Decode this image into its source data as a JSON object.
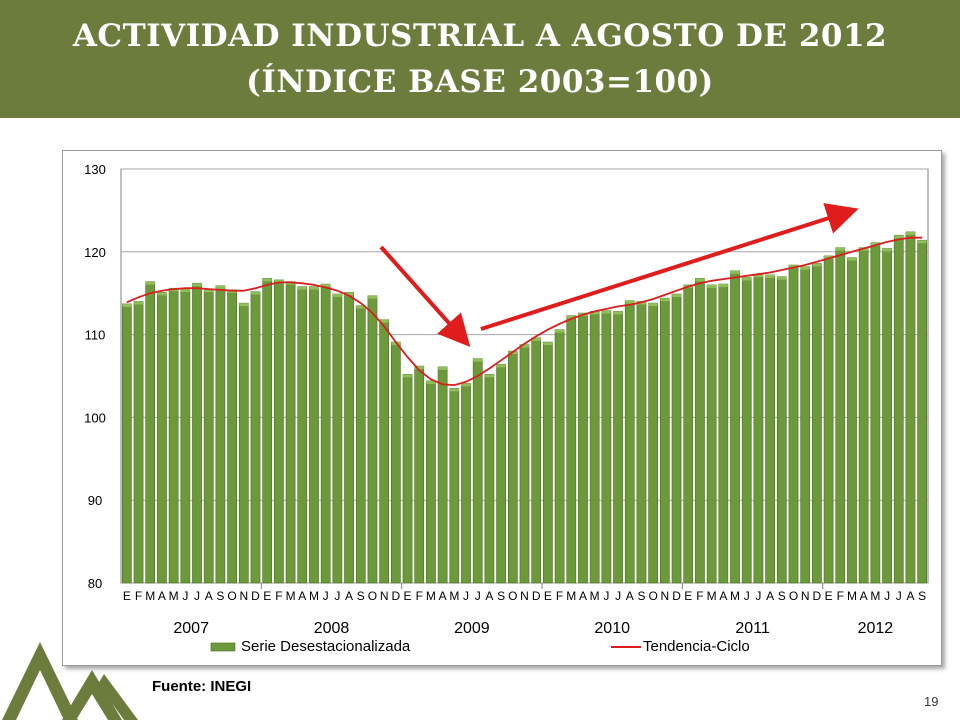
{
  "slide": {
    "title_line1": "ACTIVIDAD  INDUSTRIAL  A AGOSTO DE 2012",
    "title_line2": "(ÍNDICE BASE 2003=100)",
    "source": "Fuente: INEGI",
    "page_number": "19",
    "header_color": "#6b7c3c"
  },
  "chart_data": {
    "type": "bar",
    "y_ticks": [
      "130",
      "120",
      "110",
      "100",
      "90",
      "80"
    ],
    "ylim": [
      80,
      130
    ],
    "grid": true,
    "month_letters": [
      "E",
      "F",
      "M",
      "A",
      "M",
      "J",
      "J",
      "A",
      "S",
      "O",
      "N",
      "D"
    ],
    "years": [
      "2007",
      "2008",
      "2009",
      "2010",
      "2011",
      "2012"
    ],
    "legend_position": "bottom",
    "series": [
      {
        "name": "Serie Desestacionalizada",
        "type": "bar",
        "color": "#6c9a3a",
        "values": [
          113.7,
          114.0,
          116.4,
          115.1,
          115.6,
          115.5,
          116.2,
          115.5,
          115.9,
          115.4,
          113.8,
          115.2,
          116.8,
          116.6,
          116.4,
          115.8,
          115.8,
          116.1,
          114.9,
          115.1,
          113.5,
          114.7,
          111.8,
          109.1,
          105.2,
          106.2,
          104.4,
          106.1,
          103.5,
          104.1,
          107.1,
          105.2,
          106.4,
          108.0,
          108.8,
          109.6,
          109.1,
          110.6,
          112.3,
          112.6,
          112.8,
          112.9,
          112.8,
          114.1,
          114.0,
          113.8,
          114.4,
          114.9,
          116.0,
          116.8,
          116.0,
          116.1,
          117.7,
          116.9,
          117.3,
          117.2,
          117.0,
          118.4,
          118.2,
          118.6,
          119.5,
          120.5,
          119.3,
          120.5,
          121.1,
          120.4,
          122.0,
          122.4,
          121.4
        ]
      },
      {
        "name": "Tendencia-Ciclo",
        "type": "line",
        "color": "#d81e1e",
        "values": [
          113.9,
          114.5,
          115.0,
          115.3,
          115.5,
          115.6,
          115.6,
          115.5,
          115.4,
          115.3,
          115.3,
          115.6,
          116.0,
          116.3,
          116.3,
          116.2,
          116.0,
          115.7,
          115.3,
          114.7,
          113.8,
          112.6,
          111.0,
          109.1,
          107.3,
          105.7,
          104.6,
          104.0,
          103.9,
          104.3,
          105.0,
          105.9,
          106.9,
          107.9,
          108.9,
          109.8,
          110.6,
          111.3,
          111.9,
          112.4,
          112.8,
          113.1,
          113.4,
          113.6,
          113.9,
          114.3,
          114.8,
          115.3,
          115.8,
          116.2,
          116.5,
          116.7,
          116.9,
          117.1,
          117.3,
          117.5,
          117.8,
          118.1,
          118.4,
          118.8,
          119.2,
          119.6,
          120.0,
          120.4,
          120.8,
          121.2,
          121.5,
          121.7,
          121.7
        ]
      }
    ]
  }
}
